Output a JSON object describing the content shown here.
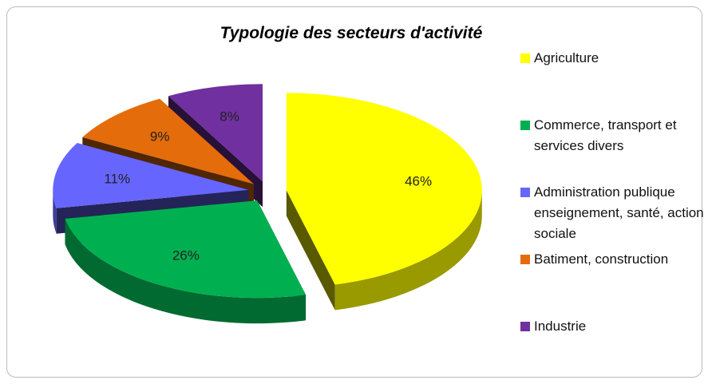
{
  "chart_data": {
    "type": "pie3d",
    "title": "Typologie des secteurs d'activité",
    "categories": [
      "Agriculture",
      "Commerce, transport et services divers",
      "Administration publique enseignement, santé, action sociale",
      "Batiment, construction",
      "Industrie"
    ],
    "values": [
      46,
      26,
      11,
      9,
      8
    ],
    "value_labels": [
      "46%",
      "26%",
      "11%",
      "9%",
      "8%"
    ],
    "colors": [
      "#ffff00",
      "#00b050",
      "#6666ff",
      "#e46c0a",
      "#7030a0"
    ],
    "legend": "right"
  }
}
